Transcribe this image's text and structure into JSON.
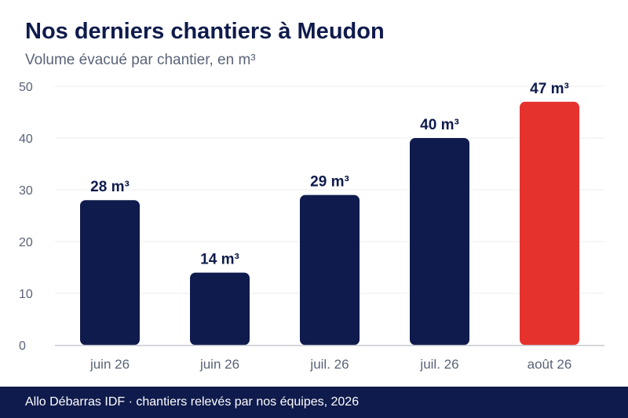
{
  "title": "Nos derniers chantiers à Meudon",
  "subtitle": "Volume évacué par chantier, en m³",
  "footer": "Allo Débarras IDF · chantiers relevés par nos équipes, 2026",
  "colors": {
    "bar_default": "#0f1b4c",
    "bar_highlight": "#e5322d",
    "grid": "#eceef2",
    "baseline": "#c9ccd6",
    "tick_text": "#5a6378",
    "label_text": "#0f1b4c"
  },
  "chart_data": {
    "type": "bar",
    "categories": [
      "juin 26",
      "juin 26",
      "juil. 26",
      "juil. 26",
      "août 26"
    ],
    "values": [
      28,
      14,
      29,
      40,
      47
    ],
    "value_labels": [
      "28 m³",
      "14 m³",
      "29 m³",
      "40 m³",
      "47 m³"
    ],
    "highlight_index": 4,
    "ylim": [
      0,
      50
    ],
    "yticks": [
      0,
      10,
      20,
      30,
      40,
      50
    ],
    "grid": true
  }
}
